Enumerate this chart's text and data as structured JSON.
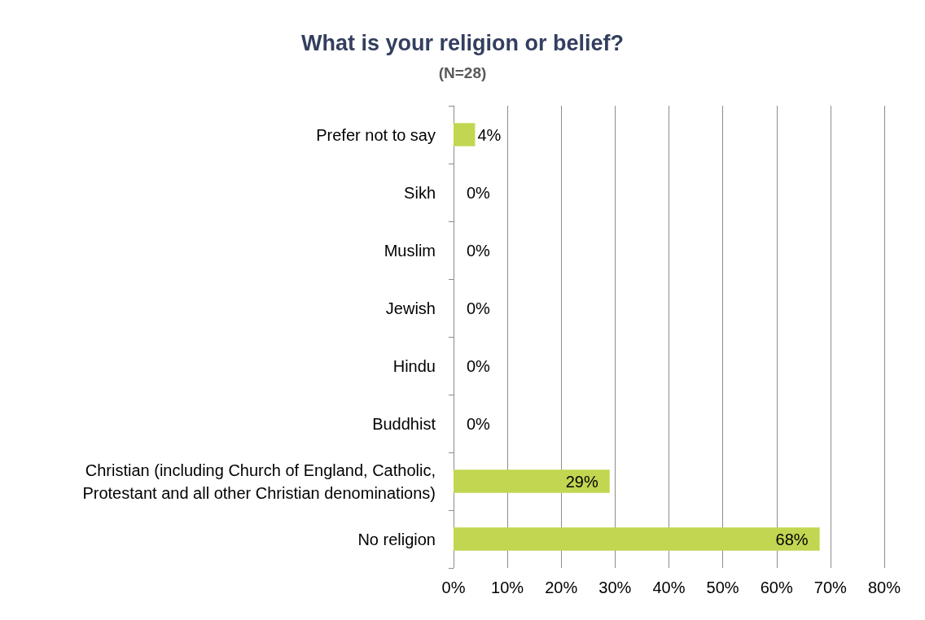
{
  "chart_data": {
    "type": "bar",
    "orientation": "horizontal",
    "title": "What is your religion or belief?",
    "subtitle": "(N=28)",
    "categories": [
      "Prefer not to say",
      "Sikh",
      "Muslim",
      "Jewish",
      "Hindu",
      "Buddhist",
      "Christian (including Church of England, Catholic,\nProtestant and all other Christian denominations)",
      "No religion"
    ],
    "values": [
      4,
      0,
      0,
      0,
      0,
      0,
      29,
      68
    ],
    "value_labels": [
      "4%",
      "0%",
      "0%",
      "0%",
      "0%",
      "0%",
      "29%",
      "68%"
    ],
    "color": "#c2d651",
    "xlim": [
      0,
      80
    ],
    "xticks": [
      {
        "value": 0,
        "label": "0%"
      },
      {
        "value": 10,
        "label": "10%"
      },
      {
        "value": 20,
        "label": "20%"
      },
      {
        "value": 30,
        "label": "30%"
      },
      {
        "value": 40,
        "label": "40%"
      },
      {
        "value": 50,
        "label": "50%"
      },
      {
        "value": 60,
        "label": "60%"
      },
      {
        "value": 70,
        "label": "70%"
      },
      {
        "value": 80,
        "label": "80%"
      }
    ],
    "grid": "x"
  }
}
